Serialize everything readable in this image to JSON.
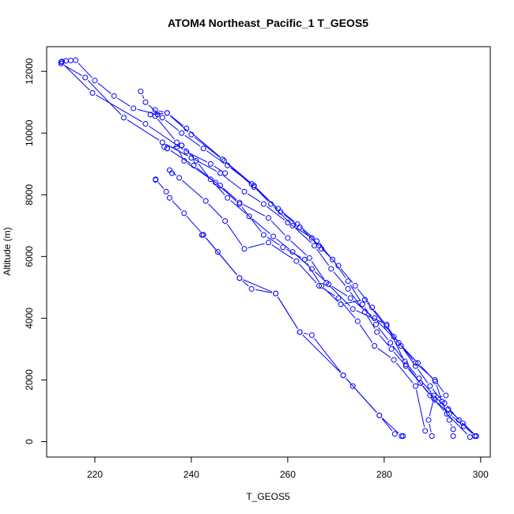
{
  "chart_data": {
    "type": "line",
    "title": "ATOM4 Northeast_Pacific_1 T_GEOS5",
    "xlabel": "T_GEOS5",
    "ylabel": "Altitude (m)",
    "xlim": [
      210,
      302
    ],
    "ylim": [
      -500,
      12800
    ],
    "xticks": [
      220,
      240,
      260,
      280,
      300
    ],
    "yticks": [
      0,
      2000,
      4000,
      6000,
      8000,
      10000,
      12000
    ],
    "xtick_labels": [
      "220",
      "240",
      "260",
      "280",
      "300"
    ],
    "ytick_labels": [
      "0",
      "2000",
      "4000",
      "6000",
      "8000",
      "10000",
      "12000"
    ],
    "grid": false,
    "style": {
      "color": "#0000ff",
      "marker": "open-circle"
    },
    "series": [
      {
        "points": [
          [
            299.1,
            180
          ],
          [
            296.5,
            500
          ],
          [
            293.5,
            900
          ],
          [
            290.5,
            1350
          ],
          [
            287.5,
            1900
          ],
          [
            284.5,
            2450
          ],
          [
            281.5,
            3000
          ],
          [
            278.5,
            3550
          ],
          [
            276,
            4200
          ],
          [
            272.5,
            4950
          ],
          [
            269,
            5600
          ],
          [
            265.5,
            6350
          ],
          [
            261,
            7000
          ],
          [
            256.5,
            7700
          ],
          [
            252.5,
            8350
          ],
          [
            247.5,
            8950
          ],
          [
            242.5,
            9500
          ],
          [
            238,
            10000
          ],
          [
            234,
            10500
          ],
          [
            230.5,
            11000
          ],
          [
            229.5,
            11350
          ]
        ]
      },
      {
        "points": [
          [
            299.1,
            180
          ],
          [
            296.3,
            600
          ],
          [
            293.3,
            1050
          ],
          [
            290.3,
            1500
          ],
          [
            287.2,
            2050
          ],
          [
            284.3,
            2600
          ],
          [
            281.3,
            3200
          ],
          [
            278.3,
            3800
          ],
          [
            275.5,
            4450
          ],
          [
            272.5,
            5200
          ],
          [
            269.3,
            5900
          ],
          [
            266,
            6500
          ],
          [
            262,
            7050
          ],
          [
            258,
            7550
          ],
          [
            253,
            8250
          ],
          [
            246.8,
            9100
          ],
          [
            240,
            9950
          ],
          [
            235,
            10650
          ],
          [
            232.5,
            10750
          ]
        ]
      },
      {
        "points": [
          [
            298.8,
            180
          ],
          [
            295.5,
            700
          ],
          [
            292.5,
            1250
          ],
          [
            289.5,
            1800
          ],
          [
            286.5,
            2450
          ],
          [
            283.5,
            3100
          ],
          [
            280.5,
            3750
          ],
          [
            277.5,
            4350
          ],
          [
            274,
            5050
          ],
          [
            270.5,
            5700
          ],
          [
            266.5,
            6350
          ],
          [
            262.5,
            6950
          ],
          [
            258.5,
            7450
          ],
          [
            253,
            8300
          ],
          [
            246.5,
            9150
          ],
          [
            239,
            10150
          ],
          [
            235,
            10650
          ],
          [
            231.5,
            10600
          ]
        ]
      },
      {
        "points": [
          [
            294.3,
            180
          ],
          [
            294.3,
            400
          ],
          [
            293.5,
            700
          ],
          [
            292,
            1300
          ],
          [
            290.6,
            1950
          ],
          [
            287,
            2550
          ],
          [
            283,
            3200
          ],
          [
            278,
            4000
          ],
          [
            273,
            4650
          ],
          [
            268.5,
            5100
          ],
          [
            265,
            5600
          ],
          [
            261,
            6150
          ],
          [
            257,
            6650
          ],
          [
            252,
            7300
          ],
          [
            247.5,
            7900
          ],
          [
            244,
            8500
          ],
          [
            241,
            9100
          ],
          [
            238,
            9600
          ],
          [
            237,
            9700
          ],
          [
            232.5,
            10550
          ]
        ]
      },
      {
        "points": [
          [
            289.9,
            180
          ],
          [
            289.2,
            700
          ],
          [
            290.3,
            1400
          ],
          [
            292.8,
            1500
          ],
          [
            290.5,
            2000
          ],
          [
            286.5,
            2550
          ],
          [
            282,
            3400
          ],
          [
            276,
            4600
          ],
          [
            271,
            4450
          ],
          [
            267,
            5050
          ],
          [
            263.5,
            5900
          ],
          [
            259,
            6300
          ],
          [
            255,
            6700
          ],
          [
            250,
            7700
          ],
          [
            245,
            8400
          ],
          [
            240.5,
            8950
          ],
          [
            235,
            9500
          ],
          [
            234.4,
            9550
          ]
        ]
      },
      {
        "points": [
          [
            283.9,
            180
          ],
          [
            282.2,
            250
          ],
          [
            279,
            850
          ],
          [
            273.5,
            1800
          ],
          [
            271.5,
            2150
          ],
          [
            265,
            3450
          ],
          [
            262.5,
            3550
          ],
          [
            257.5,
            4800
          ],
          [
            252.5,
            4950
          ],
          [
            250,
            5300
          ],
          [
            245.5,
            6150
          ],
          [
            242.5,
            6700
          ],
          [
            238.5,
            7400
          ],
          [
            235.5,
            7900
          ],
          [
            234.8,
            8100
          ],
          [
            232.6,
            8500
          ],
          [
            232.6,
            8480
          ]
        ]
      },
      {
        "points": [
          [
            288.5,
            350
          ],
          [
            286.5,
            1800
          ],
          [
            282,
            2650
          ],
          [
            278,
            3100
          ],
          [
            274.5,
            3900
          ],
          [
            270.5,
            4650
          ],
          [
            266.5,
            5050
          ],
          [
            261.8,
            5850
          ],
          [
            256,
            6450
          ],
          [
            251,
            6250
          ],
          [
            247,
            7150
          ],
          [
            243,
            7800
          ],
          [
            237.5,
            8550
          ],
          [
            235.5,
            8800
          ],
          [
            236,
            8700
          ]
        ]
      },
      {
        "points": [
          [
            297.8,
            150
          ],
          [
            293,
            900
          ],
          [
            289.5,
            1500
          ],
          [
            284.5,
            2500
          ],
          [
            280.5,
            3800
          ],
          [
            273.5,
            4300
          ],
          [
            268,
            5150
          ],
          [
            264.5,
            5950
          ],
          [
            260,
            6600
          ],
          [
            256,
            7250
          ],
          [
            250,
            7750
          ],
          [
            246,
            8300
          ],
          [
            238.5,
            9100
          ],
          [
            237,
            9550
          ],
          [
            238,
            9600
          ],
          [
            235,
            9500
          ]
        ]
      },
      {
        "points": [
          [
            283.6,
            180
          ],
          [
            279,
            850
          ],
          [
            271.5,
            2150
          ],
          [
            262.5,
            3550
          ],
          [
            257.5,
            4800
          ],
          [
            250,
            5300
          ],
          [
            242.5,
            6700
          ],
          [
            242.2,
            6700
          ]
        ]
      },
      {
        "points": [
          [
            213,
            12250
          ],
          [
            218,
            11800
          ],
          [
            226,
            10500
          ],
          [
            234,
            9700
          ],
          [
            240,
            9200
          ],
          [
            246,
            8700
          ],
          [
            251,
            8100
          ],
          [
            255,
            7700
          ],
          [
            260,
            7100
          ],
          [
            265,
            6600
          ],
          [
            267,
            6250
          ]
        ]
      },
      {
        "points": [
          [
            213,
            12300
          ],
          [
            219.5,
            11300
          ],
          [
            230.5,
            10300
          ],
          [
            239,
            9400
          ],
          [
            244,
            9000
          ],
          [
            247,
            8700
          ]
        ]
      },
      {
        "points": [
          [
            213.2,
            12320
          ],
          [
            214,
            12340
          ],
          [
            215,
            12350
          ],
          [
            216,
            12360
          ],
          [
            220,
            11700
          ],
          [
            224,
            11200
          ],
          [
            228,
            10800
          ],
          [
            233,
            10600
          ]
        ]
      }
    ]
  }
}
